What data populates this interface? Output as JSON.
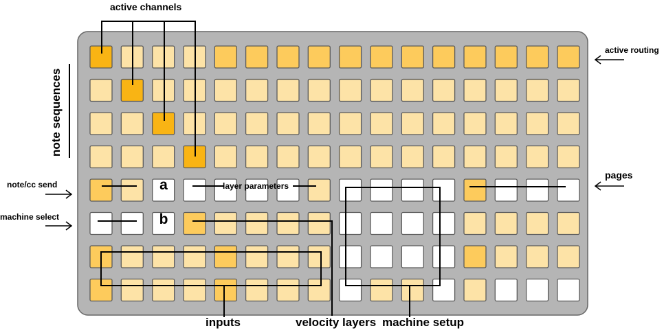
{
  "labels": {
    "active_channels": "active channels",
    "active_routing": "active routing",
    "note_sequences": "note sequences",
    "note_cc_send": "note/cc send",
    "machine_select": "machine select",
    "layer_parameters": "layer parameters",
    "pages": "pages",
    "inputs": "inputs",
    "velocity_layers": "velocity layers",
    "machine_setup": "machine setup",
    "key_a": "a",
    "key_b": "b"
  },
  "grid": {
    "rows": 8,
    "cols": 16,
    "legend": {
      "P": "pale orange",
      "M": "medium orange",
      "S": "strong orange",
      "W": "white"
    },
    "pattern": [
      "SPPPMMMMMMMMMMMM",
      "PSPPPPPPPPPPPPPP",
      "PPSPPPPPPPPPPPPP",
      "PPPSPPPPPPPPPPPP",
      "MPWWWWWPWWWWMWWW",
      "WWWMPPPPWWWWPPPP",
      "MPPPMPPPWWWWMPPP",
      "MPPPMPPPWPPWPWWW"
    ]
  },
  "colors": {
    "panel": "#b5b5b5",
    "panel_border": "#666666",
    "pale": "#fde3a7",
    "medium": "#fdcb5c",
    "strong": "#f9b414",
    "white": "#ffffff",
    "cell_border": "#5a5a5a"
  }
}
